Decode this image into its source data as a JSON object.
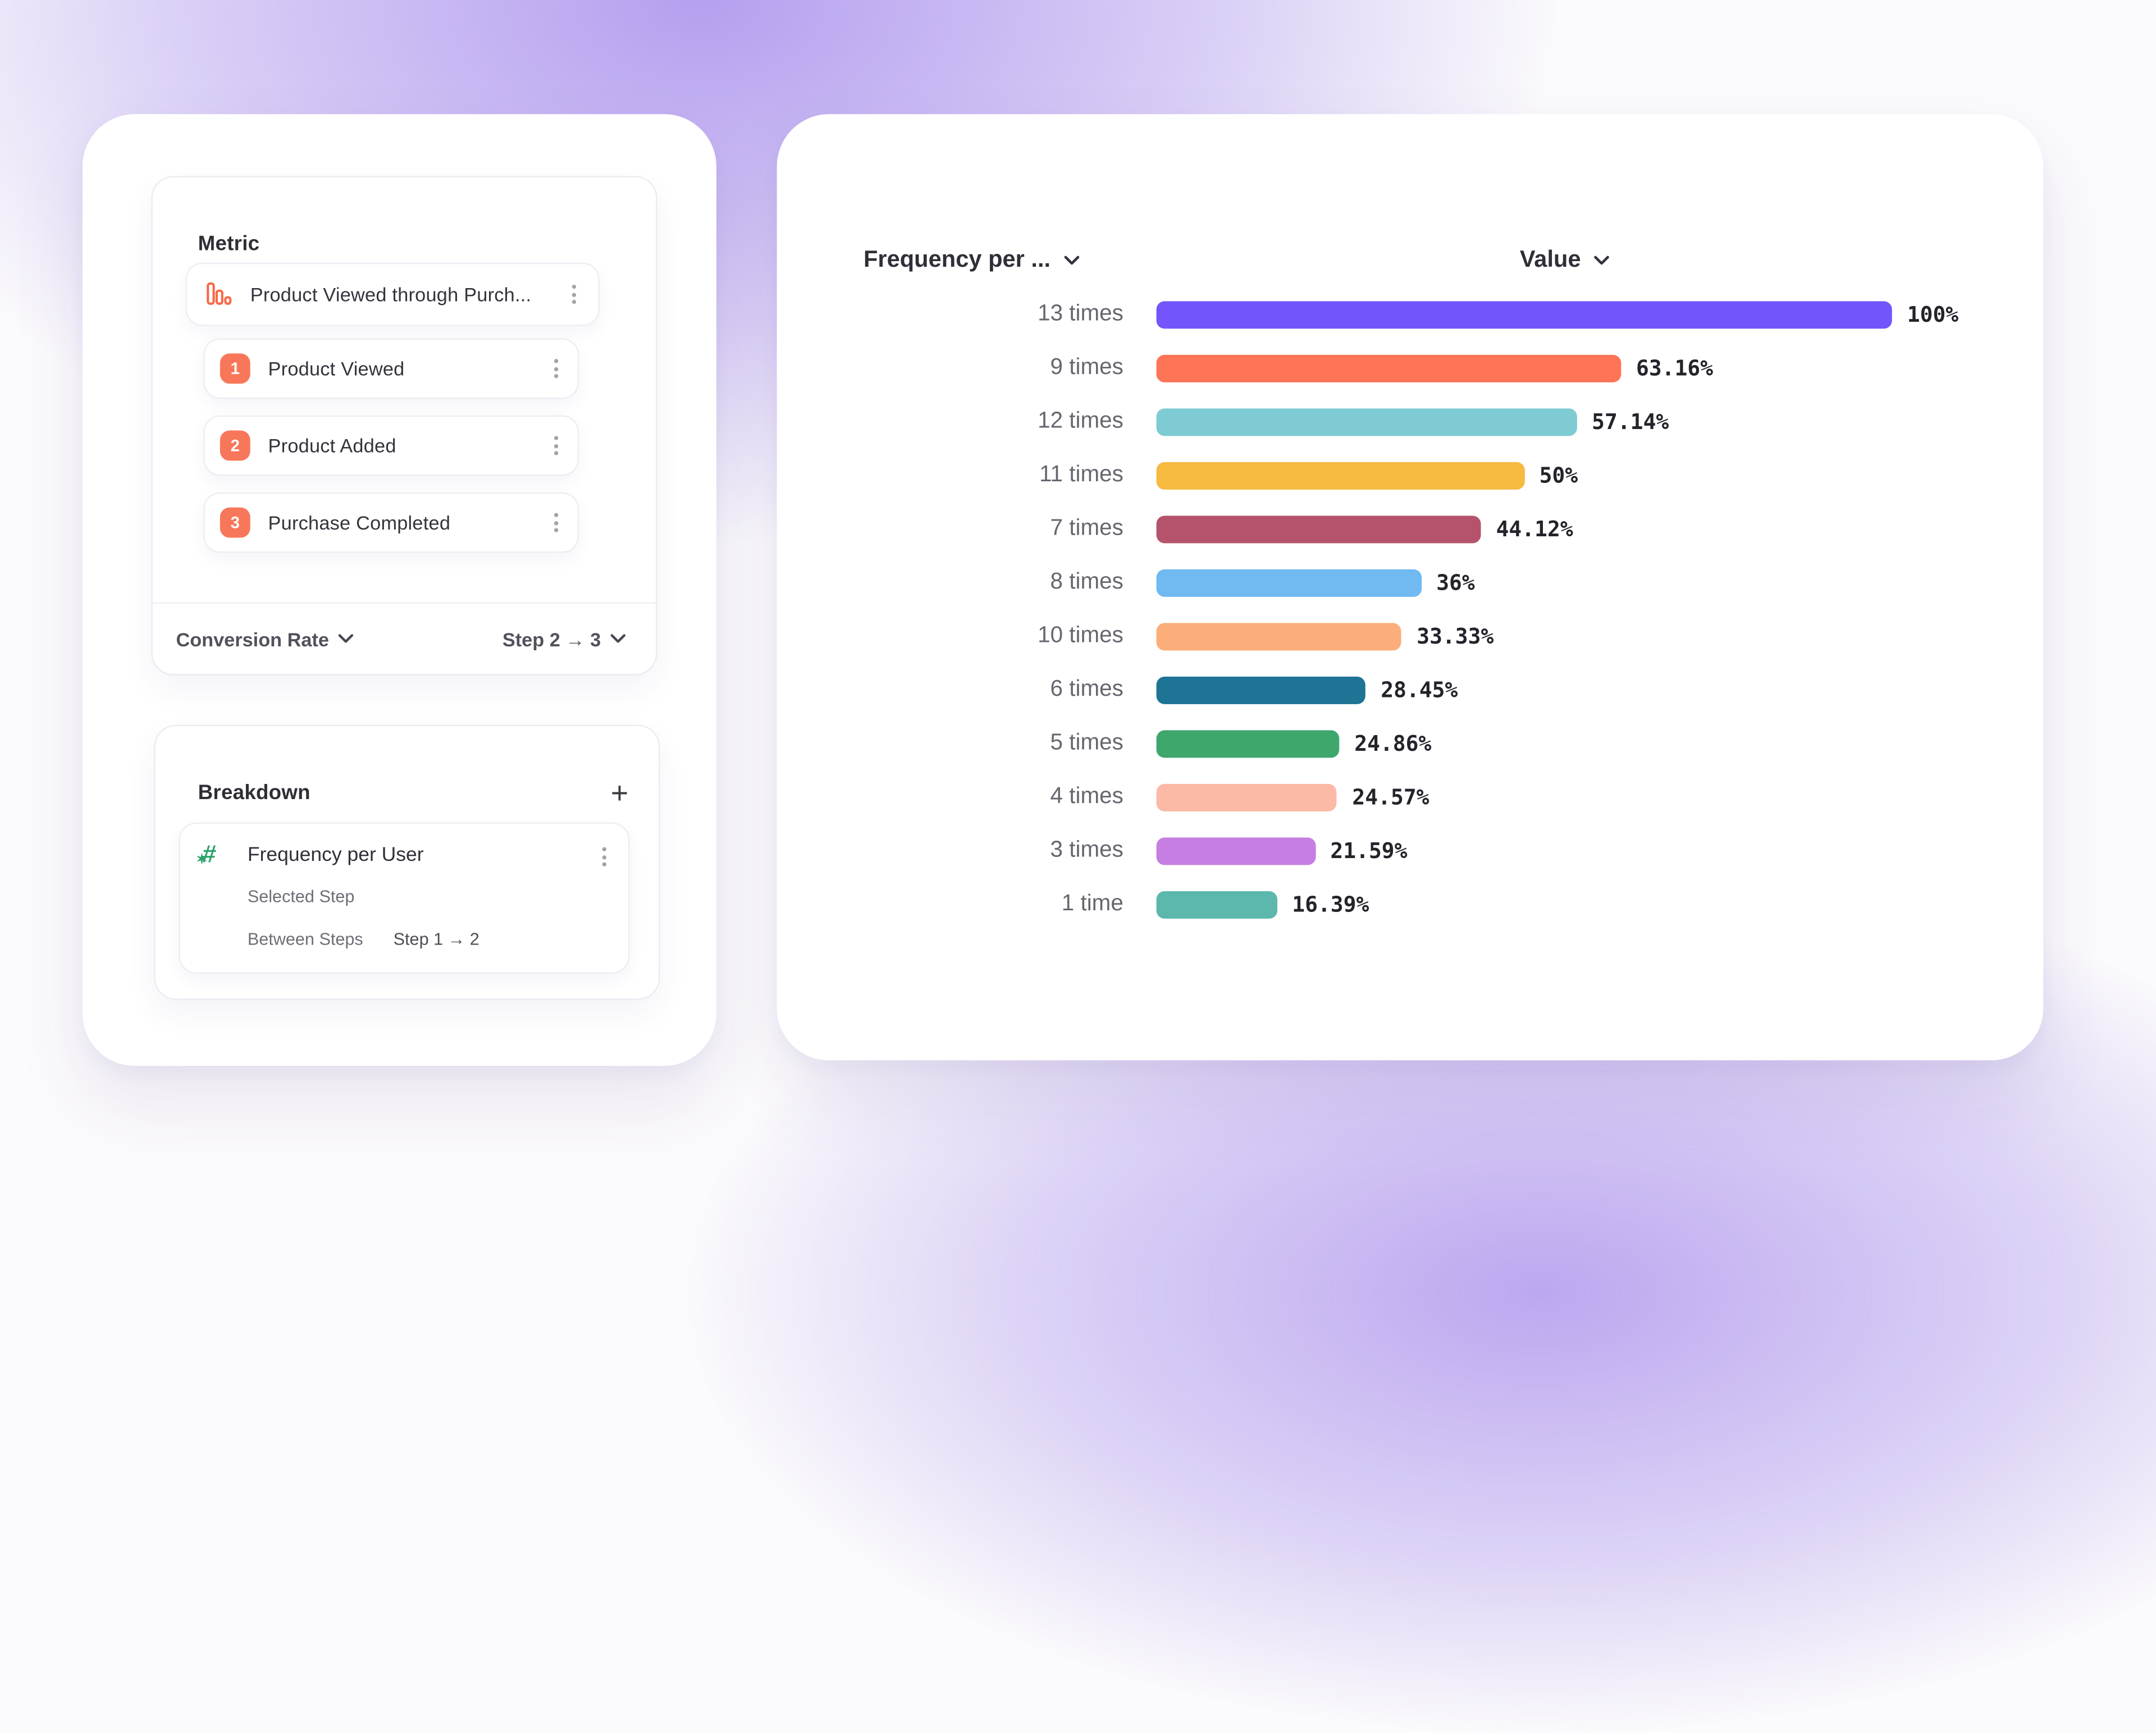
{
  "metric_panel": {
    "title": "Metric",
    "funnel_item": {
      "icon": "funnel-bars-icon",
      "label": "Product Viewed through Purch..."
    },
    "steps": [
      {
        "number": "1",
        "label": "Product Viewed"
      },
      {
        "number": "2",
        "label": "Product Added"
      },
      {
        "number": "3",
        "label": "Purchase Completed"
      }
    ],
    "footer": {
      "measure_label": "Conversion Rate",
      "step_range_label": "Step 2 → 3"
    }
  },
  "breakdown_panel": {
    "title": "Breakdown",
    "add_label": "+",
    "item": {
      "icon": "hash-icon",
      "label": "Frequency per User",
      "rows": [
        {
          "label": "Selected Step",
          "value": ""
        },
        {
          "label": "Between Steps",
          "value": "Step 1 → 2"
        }
      ]
    }
  },
  "chart_header": {
    "x_label": "Frequency per ...",
    "value_label": "Value"
  },
  "chart_data": {
    "type": "bar",
    "orientation": "horizontal",
    "x_axis_label": "Frequency per ...",
    "value_axis_label": "Value",
    "unit": "%",
    "value_range": [
      0,
      100
    ],
    "grid": false,
    "rows": [
      {
        "label": "13 times",
        "value": 100,
        "display": "100%",
        "color": "#7355fb"
      },
      {
        "label": "9 times",
        "value": 63.16,
        "display": "63.16%",
        "color": "#fd7456"
      },
      {
        "label": "12 times",
        "value": 57.14,
        "display": "57.14%",
        "color": "#7ecbd4"
      },
      {
        "label": "11 times",
        "value": 50,
        "display": "50%",
        "color": "#f6ba41"
      },
      {
        "label": "7 times",
        "value": 44.12,
        "display": "44.12%",
        "color": "#b5536c"
      },
      {
        "label": "8 times",
        "value": 36,
        "display": "36%",
        "color": "#70b9f1"
      },
      {
        "label": "10 times",
        "value": 33.33,
        "display": "33.33%",
        "color": "#fbae79"
      },
      {
        "label": "6 times",
        "value": 28.45,
        "display": "28.45%",
        "color": "#1d7495"
      },
      {
        "label": "5 times",
        "value": 24.86,
        "display": "24.86%",
        "color": "#3ea76c"
      },
      {
        "label": "4 times",
        "value": 24.57,
        "display": "24.57%",
        "color": "#fcb9a6"
      },
      {
        "label": "3 times",
        "value": 21.59,
        "display": "21.59%",
        "color": "#c77ee2"
      },
      {
        "label": "1 time",
        "value": 16.39,
        "display": "16.39%",
        "color": "#5cb8ad"
      }
    ]
  },
  "colors": {
    "accent_coral": "#f8775a",
    "accent_green": "#2da36a",
    "background_glow": "#8a68e8",
    "card_background": "#ffffff"
  }
}
